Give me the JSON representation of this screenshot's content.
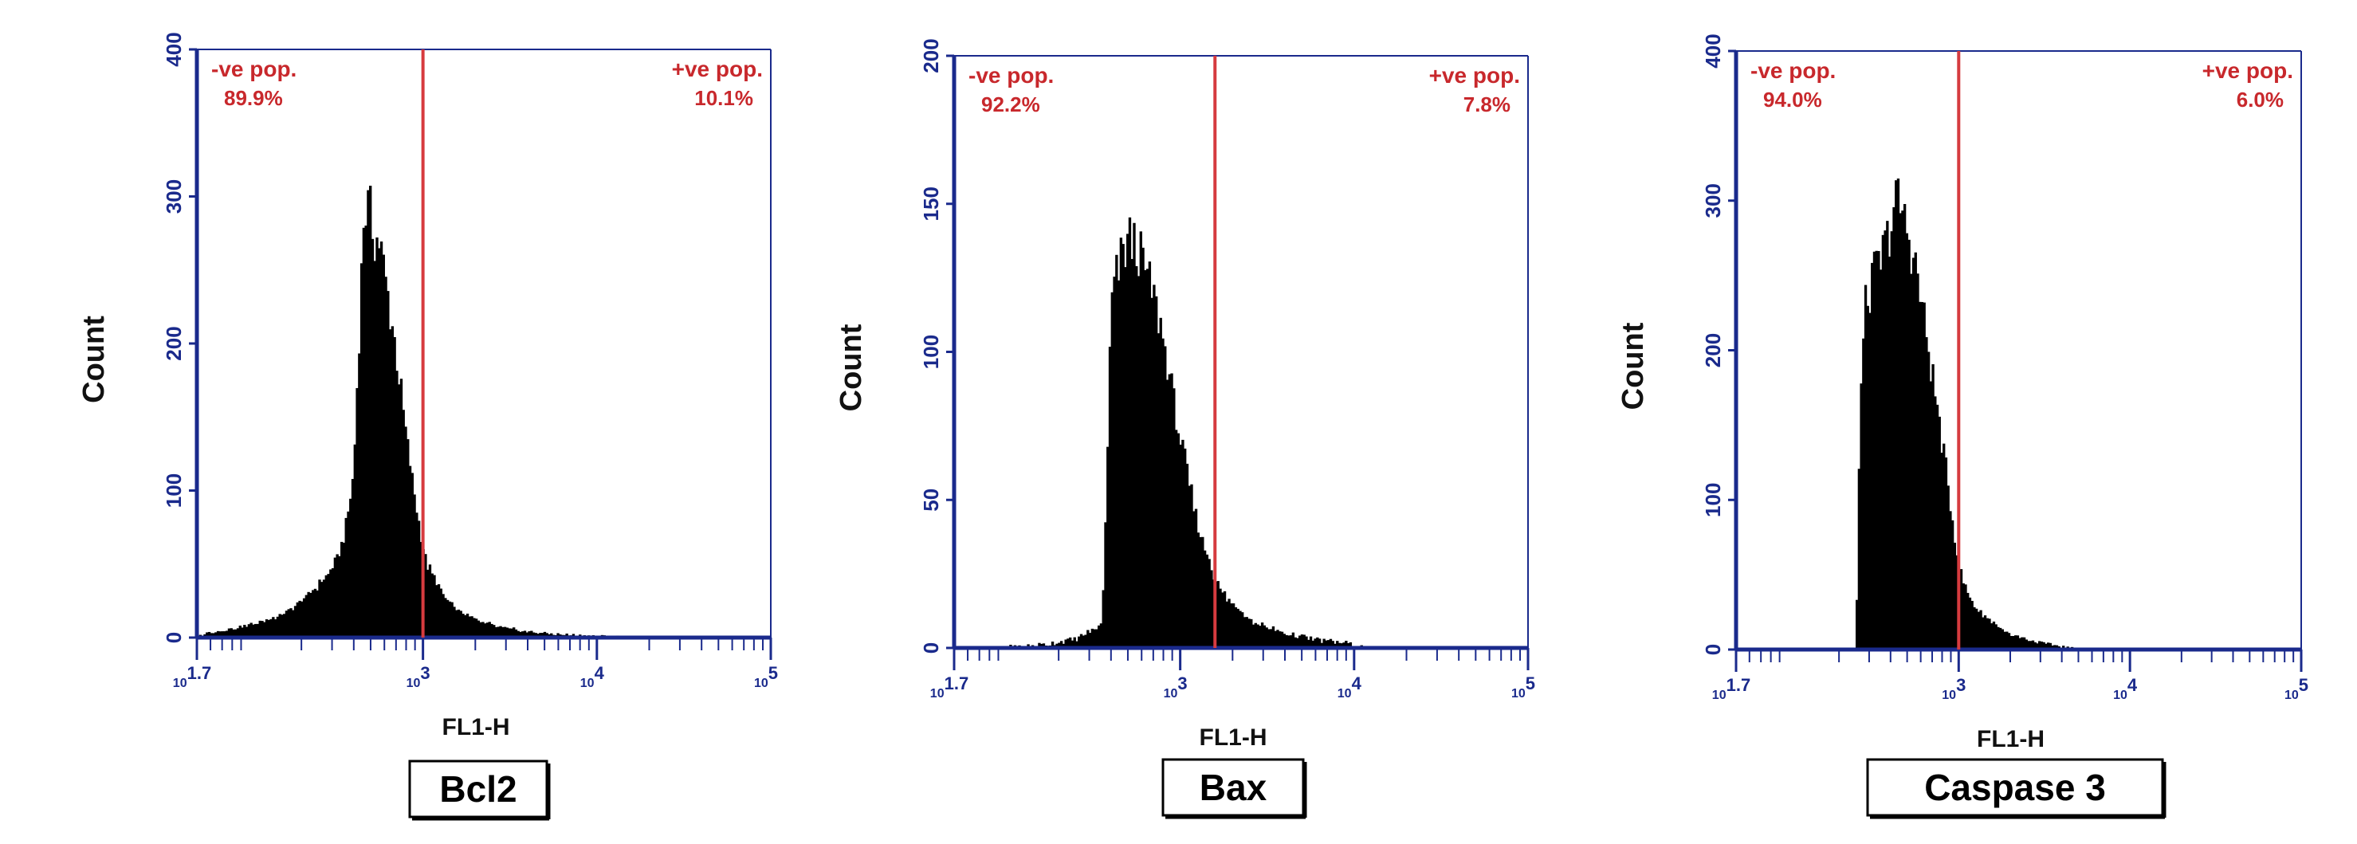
{
  "colors": {
    "axis": "#1a2a8c",
    "histogram": "#000000",
    "gate": "#d63b3f",
    "gate_text": "#c8282c"
  },
  "chart_data": [
    {
      "type": "histogram",
      "panel_label": "Bcl2",
      "xlabel": "FL1-H",
      "ylabel": "Count",
      "xscale": "log",
      "xlim": [
        1.7,
        5
      ],
      "x_ticks": [
        {
          "base": "10",
          "exp": "1.7",
          "value": 1.7
        },
        {
          "base": "10",
          "exp": "3",
          "value": 3
        },
        {
          "base": "10",
          "exp": "4",
          "value": 4
        },
        {
          "base": "10",
          "exp": "5",
          "value": 5
        }
      ],
      "ylim": [
        0,
        400
      ],
      "y_ticks": [
        0,
        100,
        200,
        300,
        400
      ],
      "gate_log10": 3.0,
      "neg_label": "-ve pop.",
      "neg_value": "89.9%",
      "pos_label": "+ve pop.",
      "pos_value": "10.1%",
      "profile": [
        [
          1.7,
          0
        ],
        [
          1.75,
          3
        ],
        [
          1.85,
          5
        ],
        [
          1.95,
          7
        ],
        [
          2.05,
          10
        ],
        [
          2.15,
          14
        ],
        [
          2.25,
          20
        ],
        [
          2.35,
          30
        ],
        [
          2.45,
          42
        ],
        [
          2.5,
          52
        ],
        [
          2.55,
          70
        ],
        [
          2.6,
          110
        ],
        [
          2.63,
          200
        ],
        [
          2.66,
          290
        ],
        [
          2.69,
          292
        ],
        [
          2.72,
          272
        ],
        [
          2.75,
          270
        ],
        [
          2.78,
          245
        ],
        [
          2.82,
          215
        ],
        [
          2.86,
          180
        ],
        [
          2.9,
          140
        ],
        [
          2.94,
          105
        ],
        [
          2.98,
          75
        ],
        [
          3.02,
          50
        ],
        [
          3.06,
          42
        ],
        [
          3.12,
          28
        ],
        [
          3.2,
          18
        ],
        [
          3.3,
          12
        ],
        [
          3.45,
          7
        ],
        [
          3.6,
          4
        ],
        [
          3.8,
          2
        ],
        [
          4.0,
          1
        ],
        [
          4.3,
          0
        ]
      ]
    },
    {
      "type": "histogram",
      "panel_label": "Bax",
      "xlabel": "FL1-H",
      "ylabel": "Count",
      "xscale": "log",
      "xlim": [
        1.7,
        5
      ],
      "x_ticks": [
        {
          "base": "10",
          "exp": "1.7",
          "value": 1.7
        },
        {
          "base": "10",
          "exp": "3",
          "value": 3
        },
        {
          "base": "10",
          "exp": "4",
          "value": 4
        },
        {
          "base": "10",
          "exp": "5",
          "value": 5
        }
      ],
      "ylim": [
        0,
        200
      ],
      "y_ticks": [
        0,
        50,
        100,
        150,
        200
      ],
      "gate_log10": 3.2,
      "neg_label": "-ve pop.",
      "neg_value": "92.2%",
      "pos_label": "+ve pop.",
      "pos_value": "7.8%",
      "profile": [
        [
          1.7,
          0
        ],
        [
          2.0,
          0
        ],
        [
          2.2,
          1
        ],
        [
          2.4,
          3
        ],
        [
          2.5,
          6
        ],
        [
          2.55,
          8
        ],
        [
          2.58,
          60
        ],
        [
          2.6,
          115
        ],
        [
          2.65,
          130
        ],
        [
          2.7,
          138
        ],
        [
          2.75,
          135
        ],
        [
          2.8,
          128
        ],
        [
          2.85,
          118
        ],
        [
          2.9,
          105
        ],
        [
          2.95,
          88
        ],
        [
          3.0,
          70
        ],
        [
          3.05,
          55
        ],
        [
          3.1,
          42
        ],
        [
          3.15,
          32
        ],
        [
          3.2,
          24
        ],
        [
          3.25,
          18
        ],
        [
          3.35,
          12
        ],
        [
          3.45,
          8
        ],
        [
          3.6,
          5
        ],
        [
          3.75,
          3
        ],
        [
          3.9,
          2
        ],
        [
          4.0,
          1
        ],
        [
          4.05,
          0
        ]
      ]
    },
    {
      "type": "histogram",
      "panel_label": "Caspase 3",
      "xlabel": "FL1-H",
      "ylabel": "Count",
      "xscale": "log",
      "xlim": [
        1.7,
        5
      ],
      "x_ticks": [
        {
          "base": "10",
          "exp": "1.7",
          "value": 1.7
        },
        {
          "base": "10",
          "exp": "3",
          "value": 3
        },
        {
          "base": "10",
          "exp": "4",
          "value": 4
        },
        {
          "base": "10",
          "exp": "5",
          "value": 5
        }
      ],
      "ylim": [
        0,
        400
      ],
      "y_ticks": [
        0,
        100,
        200,
        300,
        400
      ],
      "gate_log10": 3.0,
      "neg_label": "-ve pop.",
      "neg_value": "94.0%",
      "pos_label": "+ve pop.",
      "pos_value": "6.0%",
      "profile": [
        [
          1.7,
          0
        ],
        [
          2.2,
          0
        ],
        [
          2.4,
          0
        ],
        [
          2.42,
          150
        ],
        [
          2.45,
          225
        ],
        [
          2.5,
          248
        ],
        [
          2.55,
          262
        ],
        [
          2.6,
          282
        ],
        [
          2.63,
          300
        ],
        [
          2.66,
          296
        ],
        [
          2.7,
          280
        ],
        [
          2.75,
          255
        ],
        [
          2.8,
          218
        ],
        [
          2.85,
          180
        ],
        [
          2.9,
          140
        ],
        [
          2.95,
          98
        ],
        [
          3.0,
          55
        ],
        [
          3.05,
          38
        ],
        [
          3.1,
          28
        ],
        [
          3.2,
          18
        ],
        [
          3.3,
          10
        ],
        [
          3.45,
          5
        ],
        [
          3.6,
          2
        ],
        [
          3.7,
          0
        ]
      ]
    }
  ]
}
